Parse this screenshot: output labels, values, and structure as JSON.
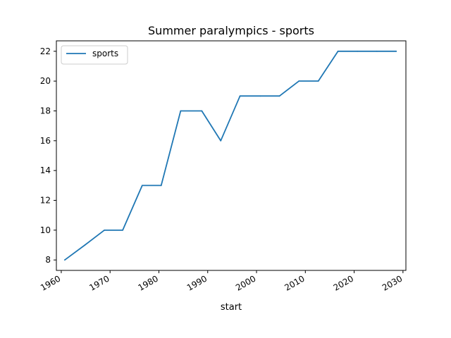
{
  "chart_data": {
    "type": "line",
    "title": "Summer paralympics - sports",
    "xlabel": "start",
    "ylabel": "",
    "xlim": [
      1959.0,
      2030.6
    ],
    "ylim": [
      7.3,
      22.7
    ],
    "x_ticks": [
      1960,
      1970,
      1980,
      1990,
      2000,
      2010,
      2020,
      2030
    ],
    "y_ticks": [
      8,
      10,
      12,
      14,
      16,
      18,
      20,
      22
    ],
    "grid": false,
    "legend": {
      "position": "top-left",
      "entries": [
        "sports"
      ]
    },
    "colors": {
      "sports": "#1f77b4"
    },
    "series": [
      {
        "name": "sports",
        "x": [
          "1960-09-18",
          "1964-11-03",
          "1968-11-04",
          "1972-08-01",
          "1976-08-03",
          "1980-06-21",
          "1984-06-17",
          "1988-10-15",
          "1992-09-03",
          "1996-08-15",
          "2000-10-18",
          "2004-09-17",
          "2008-09-06",
          "2012-08-29",
          "2016-09-07",
          "2020-08-24",
          "2024-08-28",
          "2028-08-15"
        ],
        "values": [
          8,
          9,
          10,
          10,
          13,
          13,
          18,
          18,
          16,
          19,
          19,
          19,
          20,
          20,
          22,
          22,
          22,
          22
        ]
      }
    ]
  }
}
